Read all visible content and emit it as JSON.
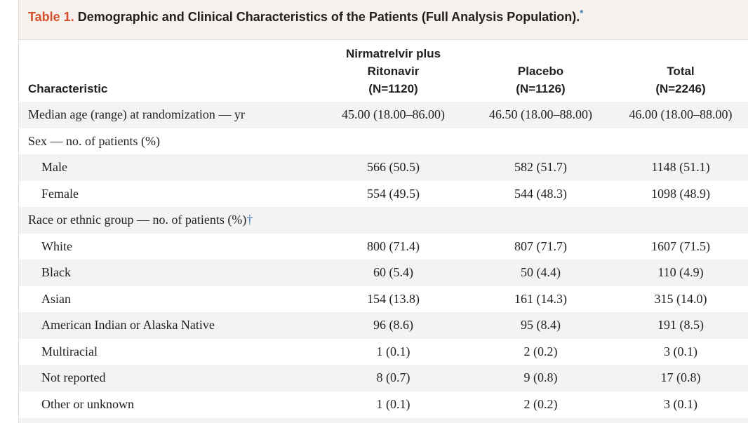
{
  "caption": {
    "table_number": "Table 1.",
    "title": "Demographic and Clinical Characteristics of the Patients (Full Analysis Population).",
    "footnote_mark": "*"
  },
  "header": {
    "characteristic": "Characteristic",
    "col1_line1": "Nirmatrelvir plus",
    "col1_line2": "Ritonavir",
    "col1_line3": "(N=1120)",
    "col2_line1": "Placebo",
    "col2_line2": "(N=1126)",
    "col3_line1": "Total",
    "col3_line2": "(N=2246)"
  },
  "rows": [
    {
      "label": "Median age (range) at randomization — yr",
      "v1": "45.00 (18.00–86.00)",
      "v2": "46.50 (18.00–88.00)",
      "v3": "46.00 (18.00–88.00)"
    },
    {
      "label": "Sex — no. of patients (%)",
      "v1": "",
      "v2": "",
      "v3": ""
    },
    {
      "label": "Male",
      "v1": "566 (50.5)",
      "v2": "582 (51.7)",
      "v3": "1148 (51.1)"
    },
    {
      "label": "Female",
      "v1": "554 (49.5)",
      "v2": "544 (48.3)",
      "v3": "1098 (48.9)"
    },
    {
      "label": "Race or ethnic group — no. of patients (%)",
      "dagger": "†",
      "v1": "",
      "v2": "",
      "v3": ""
    },
    {
      "label": "White",
      "v1": "800 (71.4)",
      "v2": "807 (71.7)",
      "v3": "1607 (71.5)"
    },
    {
      "label": "Black",
      "v1": "60 (5.4)",
      "v2": "50 (4.4)",
      "v3": "110 (4.9)"
    },
    {
      "label": "Asian",
      "v1": "154 (13.8)",
      "v2": "161 (14.3)",
      "v3": "315 (14.0)"
    },
    {
      "label": "American Indian or Alaska Native",
      "v1": "96 (8.6)",
      "v2": "95 (8.4)",
      "v3": "191 (8.5)"
    },
    {
      "label": "Multiracial",
      "v1": "1 (0.1)",
      "v2": "2 (0.2)",
      "v3": "3 (0.1)"
    },
    {
      "label": "Not reported",
      "v1": "8 (0.7)",
      "v2": "9 (0.8)",
      "v3": "17 (0.8)"
    },
    {
      "label": "Other or unknown",
      "v1": "1 (0.1)",
      "v2": "2 (0.2)",
      "v3": "3 (0.1)"
    }
  ],
  "colors": {
    "accent": "#d4502a",
    "link": "#3a6fb0",
    "band": "#f3f3f3",
    "caption_bg": "#f6f1ec"
  }
}
